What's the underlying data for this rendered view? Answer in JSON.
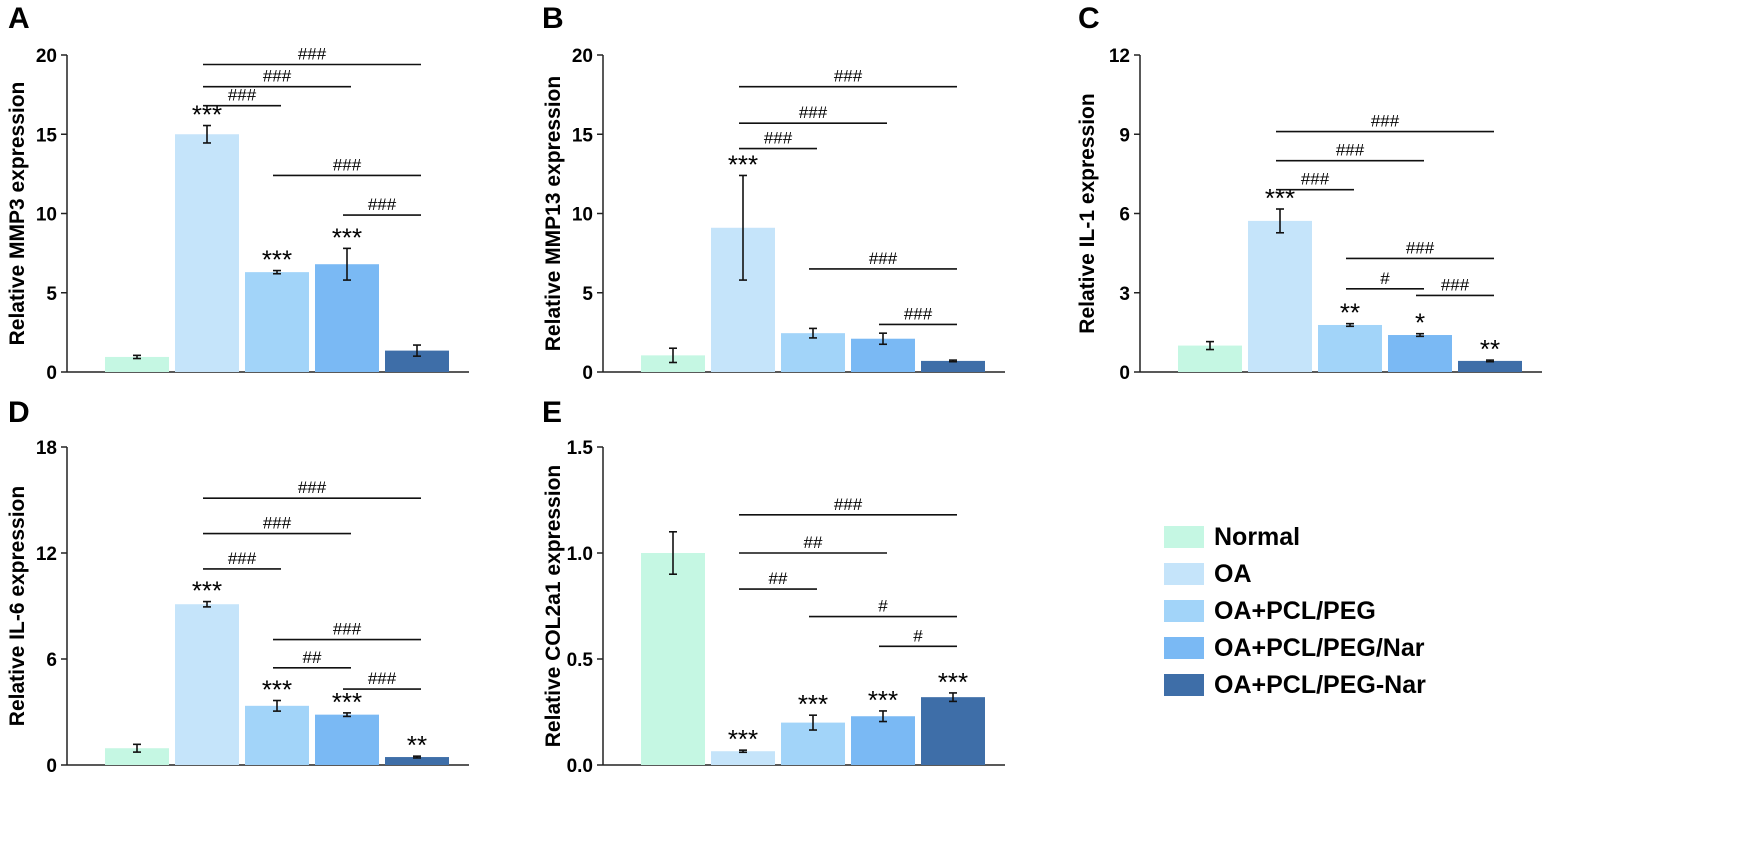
{
  "colors": {
    "Normal": "#c5f7e3",
    "OA": "#c5e4fa",
    "OA+PCL/PEG": "#a2d4f9",
    "OA+PCL/PEG/Nar": "#7ab9f4",
    "OA+PCL/PEG-Nar": "#3e6ea8"
  },
  "legend": [
    "Normal",
    "OA",
    "OA+PCL/PEG",
    "OA+PCL/PEG/Nar",
    "OA+PCL/PEG-Nar"
  ],
  "chart_data": [
    {
      "panel": "A",
      "type": "bar",
      "categories": [
        "Normal",
        "OA",
        "OA+PCL/PEG",
        "OA+PCL/PEG/Nar",
        "OA+PCL/PEG-Nar"
      ],
      "values": [
        0.95,
        15.0,
        6.3,
        6.8,
        1.35
      ],
      "errors": [
        0.1,
        0.55,
        0.1,
        1.0,
        0.35
      ],
      "ylabel": "Relative MMP3 expression",
      "ylim": [
        0,
        20
      ],
      "yticks": [
        0,
        5,
        10,
        15,
        20
      ],
      "star_labels": [
        "",
        "***",
        "***",
        "***",
        ""
      ],
      "comparisons": [
        {
          "from": 2,
          "to": 3,
          "label": "###",
          "level": 16.8
        },
        {
          "from": 2,
          "to": 4,
          "label": "###",
          "level": 18.0
        },
        {
          "from": 2,
          "to": 5,
          "label": "###",
          "level": 19.4
        },
        {
          "from": 3,
          "to": 5,
          "label": "###",
          "level": 12.4
        },
        {
          "from": 4,
          "to": 5,
          "label": "###",
          "level": 9.9
        }
      ]
    },
    {
      "panel": "B",
      "type": "bar",
      "categories": [
        "Normal",
        "OA",
        "OA+PCL/PEG",
        "OA+PCL/PEG/Nar",
        "OA+PCL/PEG-Nar"
      ],
      "values": [
        1.05,
        9.1,
        2.45,
        2.1,
        0.7
      ],
      "errors": [
        0.45,
        3.3,
        0.3,
        0.35,
        0.05
      ],
      "ylabel": "Relative MMP13 expression",
      "ylim": [
        0,
        20
      ],
      "yticks": [
        0,
        5,
        10,
        15,
        20
      ],
      "star_labels": [
        "",
        "***",
        "",
        "",
        ""
      ],
      "comparisons": [
        {
          "from": 2,
          "to": 3,
          "label": "###",
          "level": 14.1
        },
        {
          "from": 2,
          "to": 4,
          "label": "###",
          "level": 15.7
        },
        {
          "from": 2,
          "to": 5,
          "label": "###",
          "level": 18.0
        },
        {
          "from": 3,
          "to": 5,
          "label": "###",
          "level": 6.5
        },
        {
          "from": 4,
          "to": 5,
          "label": "###",
          "level": 3.0
        }
      ]
    },
    {
      "panel": "C",
      "type": "bar",
      "categories": [
        "Normal",
        "OA",
        "OA+PCL/PEG",
        "OA+PCL/PEG/Nar",
        "OA+PCL/PEG-Nar"
      ],
      "values": [
        1.0,
        5.72,
        1.78,
        1.4,
        0.42
      ],
      "errors": [
        0.15,
        0.45,
        0.05,
        0.05,
        0.03
      ],
      "ylabel": "Relative IL-1 expression",
      "ylim": [
        0,
        12
      ],
      "yticks": [
        0,
        3,
        6,
        9,
        12
      ],
      "star_labels": [
        "",
        "***",
        "**",
        "*",
        "**"
      ],
      "comparisons": [
        {
          "from": 2,
          "to": 3,
          "label": "###",
          "level": 6.9
        },
        {
          "from": 2,
          "to": 4,
          "label": "###",
          "level": 8.0
        },
        {
          "from": 2,
          "to": 5,
          "label": "###",
          "level": 9.1
        },
        {
          "from": 3,
          "to": 5,
          "label": "###",
          "level": 4.3
        },
        {
          "from": 3,
          "to": 4,
          "label": "#",
          "level": 3.15
        },
        {
          "from": 4,
          "to": 5,
          "label": "###",
          "level": 2.9
        }
      ]
    },
    {
      "panel": "D",
      "type": "bar",
      "categories": [
        "Normal",
        "OA",
        "OA+PCL/PEG",
        "OA+PCL/PEG/Nar",
        "OA+PCL/PEG-Nar"
      ],
      "values": [
        0.95,
        9.1,
        3.35,
        2.85,
        0.45
      ],
      "errors": [
        0.22,
        0.15,
        0.3,
        0.1,
        0.05
      ],
      "ylabel": "Relative IL-6 expression",
      "ylim": [
        0,
        18
      ],
      "yticks": [
        0,
        6,
        12,
        18
      ],
      "star_labels": [
        "",
        "***",
        "***",
        "***",
        "**"
      ],
      "comparisons": [
        {
          "from": 2,
          "to": 3,
          "label": "###",
          "level": 11.1
        },
        {
          "from": 2,
          "to": 4,
          "label": "###",
          "level": 13.1
        },
        {
          "from": 2,
          "to": 5,
          "label": "###",
          "level": 15.1
        },
        {
          "from": 3,
          "to": 5,
          "label": "###",
          "level": 7.1
        },
        {
          "from": 3,
          "to": 4,
          "label": "##",
          "level": 5.5
        },
        {
          "from": 4,
          "to": 5,
          "label": "###",
          "level": 4.3
        }
      ]
    },
    {
      "panel": "E",
      "type": "bar",
      "categories": [
        "Normal",
        "OA",
        "OA+PCL/PEG",
        "OA+PCL/PEG/Nar",
        "OA+PCL/PEG-Nar"
      ],
      "values": [
        1.0,
        0.065,
        0.2,
        0.23,
        0.32
      ],
      "errors": [
        0.1,
        0.005,
        0.035,
        0.025,
        0.02
      ],
      "ylabel": "Relative COL2a1 expression",
      "ylim": [
        0,
        1.5
      ],
      "yticks": [
        "0.0",
        "0.5",
        "1.0",
        "1.5"
      ],
      "star_labels": [
        "",
        "***",
        "***",
        "***",
        "***"
      ],
      "comparisons": [
        {
          "from": 2,
          "to": 3,
          "label": "##",
          "level": 0.83
        },
        {
          "from": 2,
          "to": 4,
          "label": "##",
          "level": 1.0
        },
        {
          "from": 2,
          "to": 5,
          "label": "###",
          "level": 1.18
        },
        {
          "from": 3,
          "to": 5,
          "label": "#",
          "level": 0.7
        },
        {
          "from": 4,
          "to": 5,
          "label": "#",
          "level": 0.56
        }
      ]
    }
  ]
}
